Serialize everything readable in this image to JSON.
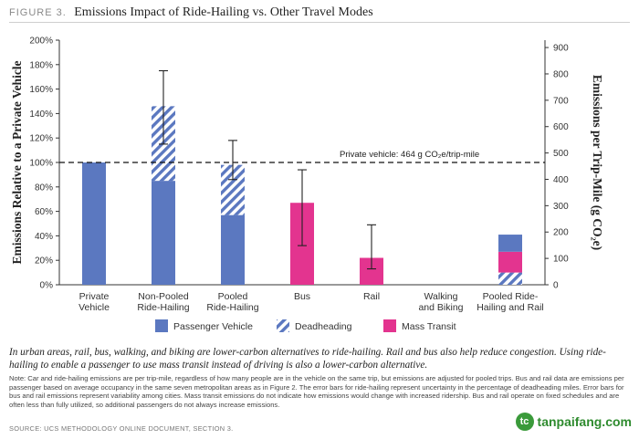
{
  "figure": {
    "label": "FIGURE 3.",
    "title": "Emissions Impact of Ride-Hailing vs. Other Travel Modes",
    "caption": "In urban areas, rail, bus, walking, and biking are lower-carbon alternatives to ride-hailing. Rail and bus also help reduce congestion. Using ride-hailing to enable a passenger to use mass transit instead of driving is also a lower-carbon alternative.",
    "note": "Note: Car and ride-hailing emissions are per trip-mile, regardless of how many people are in the vehicle on the same trip, but emissions are adjusted for pooled trips. Bus and rail data are emissions per passenger based on average occupancy in the same seven metropolitan areas as in Figure 2. The error bars for ride-hailing represent uncertainty in the percentage of deadheading miles. Error bars for bus and rail emissions represent variability among cities. Mass transit emissions do not indicate how emissions would change with increased ridership. Bus and rail operate on fixed schedules and are often less than fully utilized, so additional passengers do not always increase emissions.",
    "source": "SOURCE: UCS METHODOLOGY ONLINE DOCUMENT, SECTION 3."
  },
  "watermark": {
    "logo_text": "tc",
    "text": "tanpaifang.com"
  },
  "chart_data": {
    "type": "bar",
    "stacked": true,
    "categories": [
      [
        "Private",
        "Vehicle"
      ],
      [
        "Non-Pooled",
        "Ride-Hailing"
      ],
      [
        "Pooled",
        "Ride-Hailing"
      ],
      [
        "Bus"
      ],
      [
        "Rail"
      ],
      [
        "Walking",
        "and Biking"
      ],
      [
        "Pooled Ride-",
        "Hailing and Rail"
      ]
    ],
    "series": [
      {
        "name": "Passenger Vehicle",
        "color": "#5b78c0",
        "pattern": "solid",
        "values": [
          100,
          85,
          57,
          0,
          0,
          0,
          0
        ]
      },
      {
        "name": "Deadheading",
        "color": "#5b78c0",
        "pattern": "diagonal-hatch",
        "values": [
          0,
          61,
          41,
          0,
          0,
          0,
          10
        ]
      },
      {
        "name": "Mass Transit",
        "color": "#e3348f",
        "pattern": "solid",
        "values": [
          0,
          0,
          0,
          67,
          22,
          0,
          17
        ]
      },
      {
        "name": "",
        "color": "#5b78c0",
        "pattern": "solid",
        "values": [
          0,
          0,
          0,
          0,
          0,
          0,
          14
        ]
      }
    ],
    "error_bars": [
      null,
      [
        115,
        175
      ],
      [
        86,
        118
      ],
      [
        32,
        94
      ],
      [
        13,
        49
      ],
      null,
      null
    ],
    "ylabel": "Emissions Relative to a Private Vehicle",
    "ylabel2": "Emissions per Trip-Mile (g CO₂e)",
    "ylim": [
      0,
      200
    ],
    "yticks": [
      "0%",
      "20%",
      "40%",
      "60%",
      "80%",
      "100%",
      "120%",
      "140%",
      "160%",
      "180%",
      "200%"
    ],
    "y2lim": [
      0,
      928
    ],
    "y2ticks": [
      0,
      100,
      200,
      300,
      400,
      500,
      600,
      700,
      800,
      900
    ],
    "reference_line": {
      "value": 100,
      "label": "Private vehicle: 464 g CO₂e/trip-mile",
      "style": "dashed"
    },
    "legend": {
      "placement": "bottom"
    }
  }
}
